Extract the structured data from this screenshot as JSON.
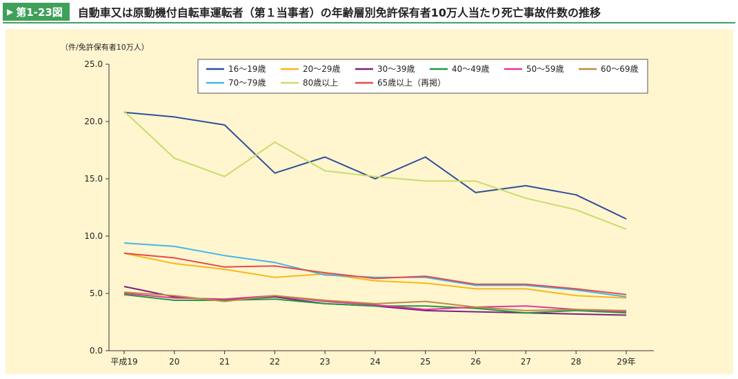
{
  "figure": {
    "number": "第1-23図",
    "title": "自動車又は原動機付自転車運転者（第１当事者）の年齢層別免許保有者10万人当たり死亡事故件数の推移"
  },
  "chart_data": {
    "type": "line",
    "ylabel": "（件/免許保有者10万人）",
    "ylim": [
      0,
      25
    ],
    "yticks": [
      "0.0",
      "5.0",
      "10.0",
      "15.0",
      "20.0",
      "25.0"
    ],
    "categories": [
      "平成19",
      "20",
      "21",
      "22",
      "23",
      "24",
      "25",
      "26",
      "27",
      "28",
      "29年"
    ],
    "grid": false,
    "legend_position": "top",
    "series": [
      {
        "name": "16～19歳",
        "color": "#2e4f9a",
        "values": [
          20.8,
          20.4,
          19.7,
          15.5,
          16.9,
          15.0,
          16.9,
          13.8,
          14.4,
          13.6,
          11.5
        ]
      },
      {
        "name": "20～29歳",
        "color": "#f7b718",
        "values": [
          8.5,
          7.6,
          7.1,
          6.4,
          6.7,
          6.1,
          5.9,
          5.4,
          5.4,
          4.8,
          4.6
        ]
      },
      {
        "name": "30～39歳",
        "color": "#7a2080",
        "values": [
          5.6,
          4.7,
          4.4,
          4.7,
          4.1,
          3.9,
          3.5,
          3.4,
          3.3,
          3.2,
          3.1
        ]
      },
      {
        "name": "40～49歳",
        "color": "#1e9a48",
        "values": [
          4.9,
          4.4,
          4.4,
          4.5,
          4.1,
          3.9,
          3.9,
          3.7,
          3.3,
          3.5,
          3.3
        ]
      },
      {
        "name": "50～59歳",
        "color": "#e0369c",
        "values": [
          5.0,
          4.6,
          4.5,
          4.8,
          4.3,
          4.0,
          3.6,
          3.8,
          3.9,
          3.6,
          3.4
        ]
      },
      {
        "name": "60～69歳",
        "color": "#b98c42",
        "values": [
          5.1,
          4.8,
          4.3,
          4.8,
          4.4,
          4.1,
          4.3,
          3.8,
          3.5,
          3.6,
          3.5
        ]
      },
      {
        "name": "70～79歳",
        "color": "#42b6e8",
        "values": [
          9.4,
          9.1,
          8.3,
          7.7,
          6.6,
          6.4,
          6.4,
          5.7,
          5.7,
          5.3,
          4.7
        ]
      },
      {
        "name": "80歳以上",
        "color": "#c8dc6c",
        "values": [
          20.9,
          16.8,
          15.2,
          18.2,
          15.7,
          15.2,
          14.8,
          14.8,
          13.3,
          12.3,
          10.6
        ]
      },
      {
        "name": "65歳以上（再掲）",
        "color": "#e8474a",
        "values": [
          8.5,
          8.1,
          7.3,
          7.4,
          6.8,
          6.3,
          6.5,
          5.8,
          5.8,
          5.4,
          4.9
        ]
      }
    ]
  }
}
